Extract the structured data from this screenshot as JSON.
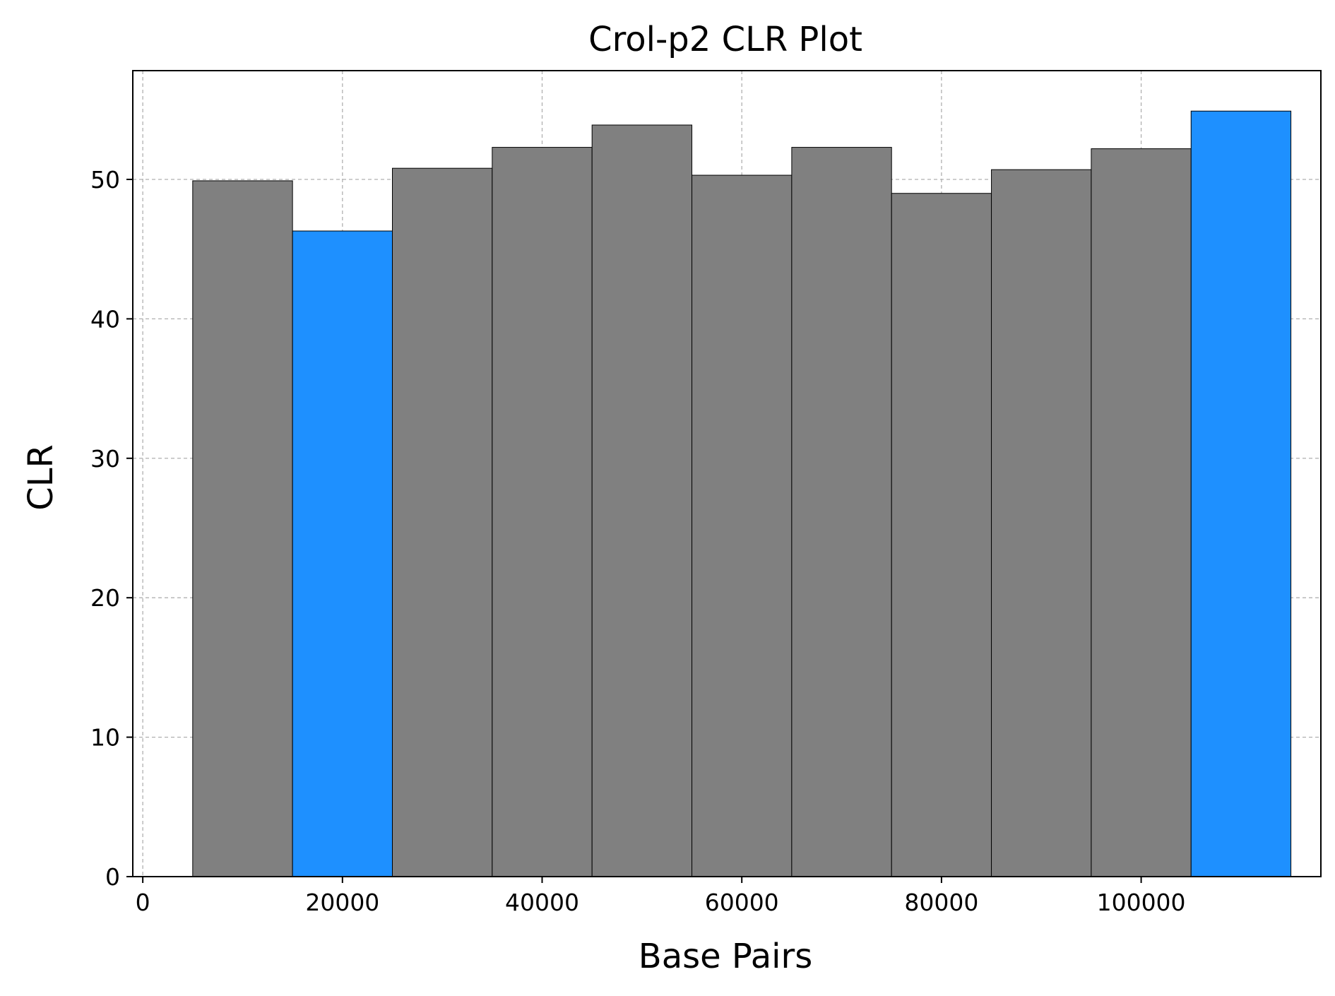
{
  "chart_data": {
    "type": "bar",
    "title": "Crol-p2 CLR Plot",
    "xlabel": "Base Pairs",
    "ylabel": "CLR",
    "xlim": [
      -1000,
      118000
    ],
    "ylim": [
      0,
      57.8
    ],
    "xticks": [
      0,
      20000,
      40000,
      60000,
      80000,
      100000
    ],
    "yticks": [
      0,
      10,
      20,
      30,
      40,
      50
    ],
    "grid": true,
    "bar_width": 10000,
    "colors": {
      "default": "#808080",
      "highlight": "#1e90ff",
      "edge": "#000000",
      "grid": "#b0b0b0"
    },
    "bars": [
      {
        "x": 10000,
        "value": 49.9,
        "highlight": false
      },
      {
        "x": 20000,
        "value": 46.3,
        "highlight": true
      },
      {
        "x": 30000,
        "value": 50.8,
        "highlight": false
      },
      {
        "x": 40000,
        "value": 52.3,
        "highlight": false
      },
      {
        "x": 50000,
        "value": 53.9,
        "highlight": false
      },
      {
        "x": 60000,
        "value": 50.3,
        "highlight": false
      },
      {
        "x": 70000,
        "value": 52.3,
        "highlight": false
      },
      {
        "x": 80000,
        "value": 49.0,
        "highlight": false
      },
      {
        "x": 90000,
        "value": 50.7,
        "highlight": false
      },
      {
        "x": 100000,
        "value": 52.2,
        "highlight": false
      },
      {
        "x": 110000,
        "value": 54.9,
        "highlight": true
      }
    ]
  }
}
